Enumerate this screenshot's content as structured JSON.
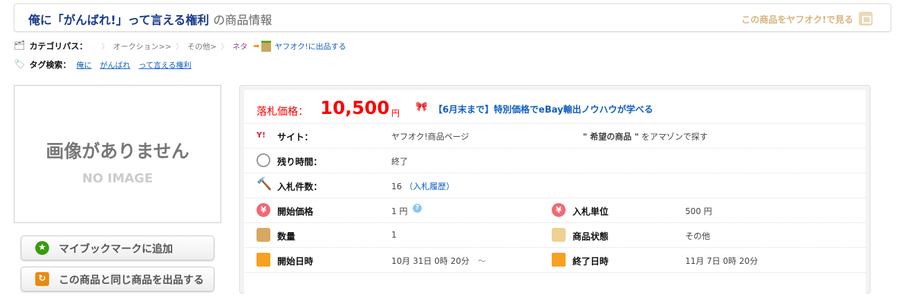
{
  "header": {
    "title": "俺に「がんばれ!」って言える権利",
    "title_suffix": "の商品情報",
    "view_link": "この商品をヤフオク!で見る"
  },
  "category": {
    "label": "カテゴリパス：",
    "items": [
      "オークション>>",
      "その他>",
      "ネタ"
    ],
    "sell_link": "ヤフオク!に出品する"
  },
  "tags": {
    "label": "タグ検索：",
    "items": [
      "俺に",
      "がんばれ",
      "って言える権利"
    ]
  },
  "image": {
    "placeholder_jp": "画像がありません",
    "placeholder_en": "NO IMAGE"
  },
  "buttons": {
    "bookmark": "マイブックマークに追加",
    "sell_same": "この商品と同じ商品を出品する"
  },
  "price": {
    "label": "落札価格：",
    "value": "10,500",
    "unit": "円",
    "promo": "【6月末まで】特別価格でeBay輸出ノウハウが学べる"
  },
  "rows": {
    "site": {
      "label": "サイト：",
      "value": "ヤフオク!商品ページ",
      "amazon_q": "\" 希望の商品 \"",
      "amazon": "をアマゾンで探す"
    },
    "remaining": {
      "label": "残り時間：",
      "value": "終了"
    },
    "bids": {
      "label": "入札件数：",
      "value": "16",
      "history": "（入札履歴）"
    },
    "start_price": {
      "label": "開始価格",
      "value": "1 円"
    },
    "bid_unit": {
      "label": "入札単位",
      "value": "500 円"
    },
    "quantity": {
      "label": "数量",
      "value": "1"
    },
    "condition": {
      "label": "商品状態",
      "value": "その他"
    },
    "start_date": {
      "label": "開始日時",
      "value": "10月 31日 0時 20分",
      "tilde": "～"
    },
    "end_date": {
      "label": "終了日時",
      "value": "11月 7日 0時 20分"
    }
  },
  "colors": {
    "price": "#ff0000",
    "link": "#1060c0",
    "title": "#1a3c8c"
  }
}
